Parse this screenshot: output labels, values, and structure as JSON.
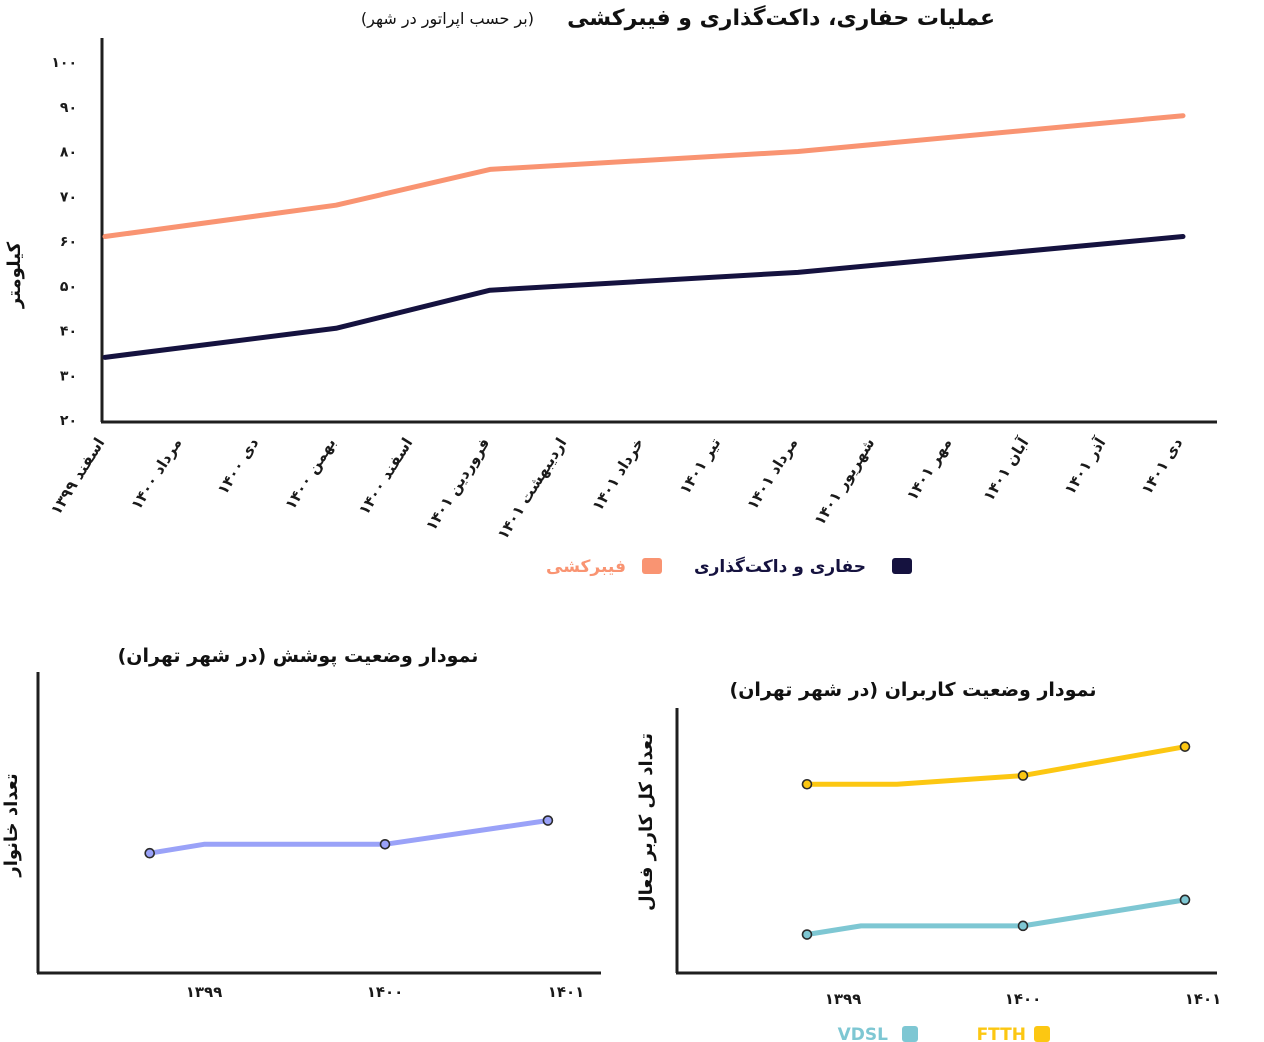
{
  "colors": {
    "fiber": "#f99472",
    "duct": "#15123f",
    "coverage": "#9aa2f8",
    "vdsl": "#7ec7d3",
    "ftth": "#fcc712",
    "axis": "#1f1f1f"
  },
  "chart_data": [
    {
      "type": "line",
      "title": "عملیات حفاری، داکت‌گذاری و فیبرکشی",
      "subtitle": "(بر حسب اپراتور در شهر)",
      "ylabel": "کیلومتر",
      "xlabel": "",
      "ylim": [
        20,
        100
      ],
      "yticks": [
        "۲۰",
        "۳۰",
        "۴۰",
        "۵۰",
        "۶۰",
        "۷۰",
        "۸۰",
        "۹۰",
        "۱۰۰"
      ],
      "grid": false,
      "legend_position": "bottom",
      "categories": [
        "اسفند ۱۳۹۹",
        "مرداد ۱۴۰۰",
        "دی ۱۴۰۰",
        "بهمن ۱۴۰۰",
        "اسفند ۱۴۰۰",
        "فروردین ۱۴۰۱",
        "اردیبهشت ۱۴۰۱",
        "خرداد ۱۴۰۱",
        "تیر ۱۴۰۱",
        "مرداد ۱۴۰۱",
        "شهریور ۱۴۰۱",
        "مهر ۱۴۰۱",
        "آبان ۱۴۰۱",
        "آذر ۱۴۰۱",
        "دی ۱۴۰۱"
      ],
      "series": [
        {
          "name": "فیبرکشی",
          "color_key": "fiber",
          "points": [
            {
              "x": "اسفند ۱۳۹۹",
              "y": 61
            },
            {
              "x": "بهمن ۱۴۰۰",
              "y": 68
            },
            {
              "x": "فروردین ۱۴۰۱",
              "y": 76
            },
            {
              "x": "مرداد ۱۴۰۱",
              "y": 80
            },
            {
              "x": "دی ۱۴۰۱",
              "y": 88
            }
          ]
        },
        {
          "name": "حفاری و داکت‌گذاری",
          "color_key": "duct",
          "points": [
            {
              "x": "اسفند ۱۳۹۹",
              "y": 34
            },
            {
              "x": "بهمن ۱۴۰۰",
              "y": 40.5
            },
            {
              "x": "فروردین ۱۴۰۱",
              "y": 49
            },
            {
              "x": "مرداد ۱۴۰۱",
              "y": 53
            },
            {
              "x": "دی ۱۴۰۱",
              "y": 61
            }
          ]
        }
      ]
    },
    {
      "type": "line",
      "title": "نمودار وضعیت پوشش (در شهر تهران)",
      "ylabel": "تعداد خانوار",
      "xlabel": "",
      "ylim": [
        0,
        100
      ],
      "grid": false,
      "categories": [
        "۱۳۹۹",
        "۱۴۰۰",
        "۱۴۰۱"
      ],
      "series": [
        {
          "name": "",
          "color_key": "coverage",
          "points": [
            {
              "x": 1398.7,
              "y": 40,
              "marker": true
            },
            {
              "x": 1399,
              "y": 43,
              "marker": false
            },
            {
              "x": 1400,
              "y": 43,
              "marker": true
            },
            {
              "x": 1400.9,
              "y": 51,
              "marker": true
            }
          ]
        }
      ]
    },
    {
      "type": "line",
      "title": "نمودار وضعیت کاربران (در شهر تهران)",
      "ylabel": "تعداد کل کاربر فعال",
      "xlabel": "",
      "ylim": [
        0,
        100
      ],
      "grid": false,
      "legend_position": "bottom",
      "categories": [
        "۱۳۹۹",
        "۱۴۰۰",
        "۱۴۰۱"
      ],
      "series": [
        {
          "name": "FTTH",
          "color_key": "ftth",
          "points": [
            {
              "x": 1398.8,
              "y": 75,
              "marker": true
            },
            {
              "x": 1399.3,
              "y": 75,
              "marker": false
            },
            {
              "x": 1400,
              "y": 78,
              "marker": true
            },
            {
              "x": 1400.9,
              "y": 88,
              "marker": true
            }
          ]
        },
        {
          "name": "VDSL",
          "color_key": "vdsl",
          "points": [
            {
              "x": 1398.8,
              "y": 23,
              "marker": true
            },
            {
              "x": 1399.1,
              "y": 26,
              "marker": false
            },
            {
              "x": 1400,
              "y": 26,
              "marker": true
            },
            {
              "x": 1400.9,
              "y": 35,
              "marker": true
            }
          ]
        }
      ]
    }
  ]
}
